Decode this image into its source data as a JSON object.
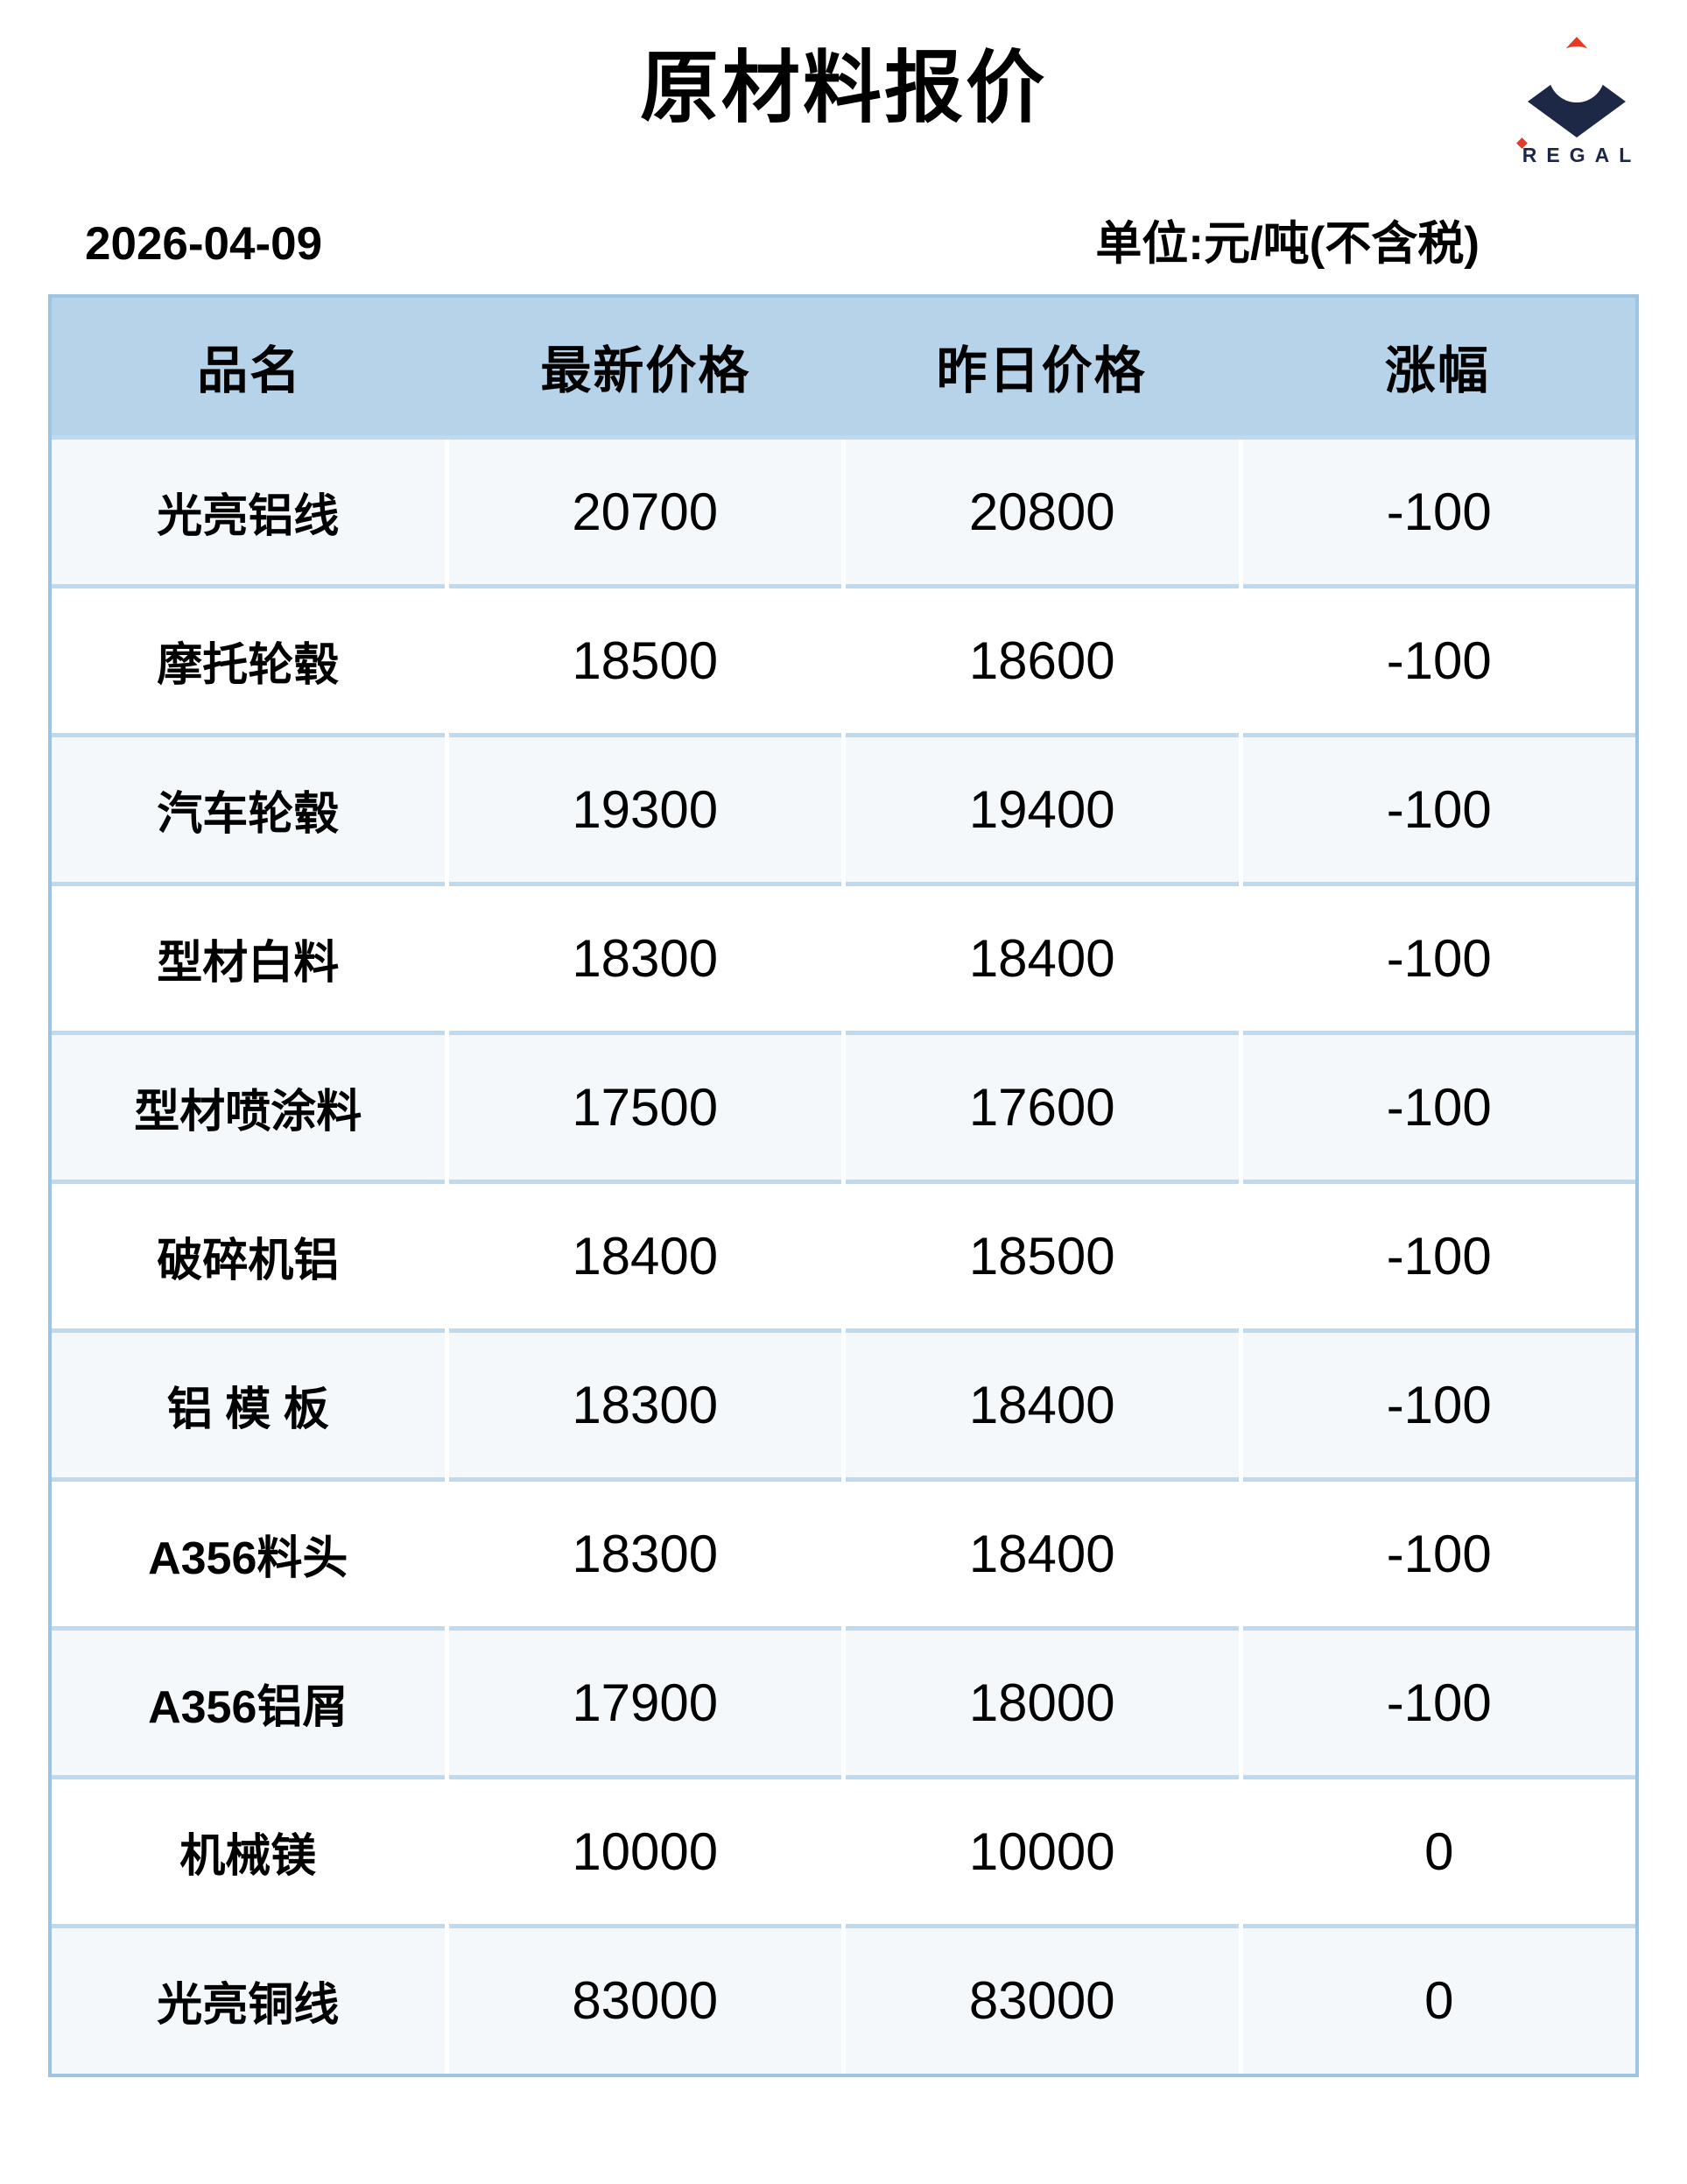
{
  "header": {
    "title": "原材料报价",
    "date": "2026-04-09",
    "unit": "单位:元/吨(不含税)"
  },
  "logo": {
    "brand": "REGAL"
  },
  "table": {
    "columns": [
      "品名",
      "最新价格",
      "昨日价格",
      "涨幅"
    ],
    "rows": [
      [
        "光亮铝线",
        "20700",
        "20800",
        "-100"
      ],
      [
        "摩托轮毂",
        "18500",
        "18600",
        "-100"
      ],
      [
        "汽车轮毂",
        "19300",
        "19400",
        "-100"
      ],
      [
        "型材白料",
        "18300",
        "18400",
        "-100"
      ],
      [
        "型材喷涂料",
        "17500",
        "17600",
        "-100"
      ],
      [
        "破碎机铝",
        "18400",
        "18500",
        "-100"
      ],
      [
        "铝 模 板",
        "18300",
        "18400",
        "-100"
      ],
      [
        "A356料头",
        "18300",
        "18400",
        "-100"
      ],
      [
        "A356铝屑",
        "17900",
        "18000",
        "-100"
      ],
      [
        "机械镁",
        "10000",
        "10000",
        "0"
      ],
      [
        "光亮铜线",
        "83000",
        "83000",
        "0"
      ]
    ]
  },
  "colors": {
    "header_bg": "#b7d3e9",
    "row_bg": "#ffffff",
    "row_alt_bg": "#f4f8fa",
    "separator": "#bedaf1",
    "outer_border": "#9dc4e3",
    "logo_navy": "#1d2847",
    "logo_red": "#e63928"
  }
}
